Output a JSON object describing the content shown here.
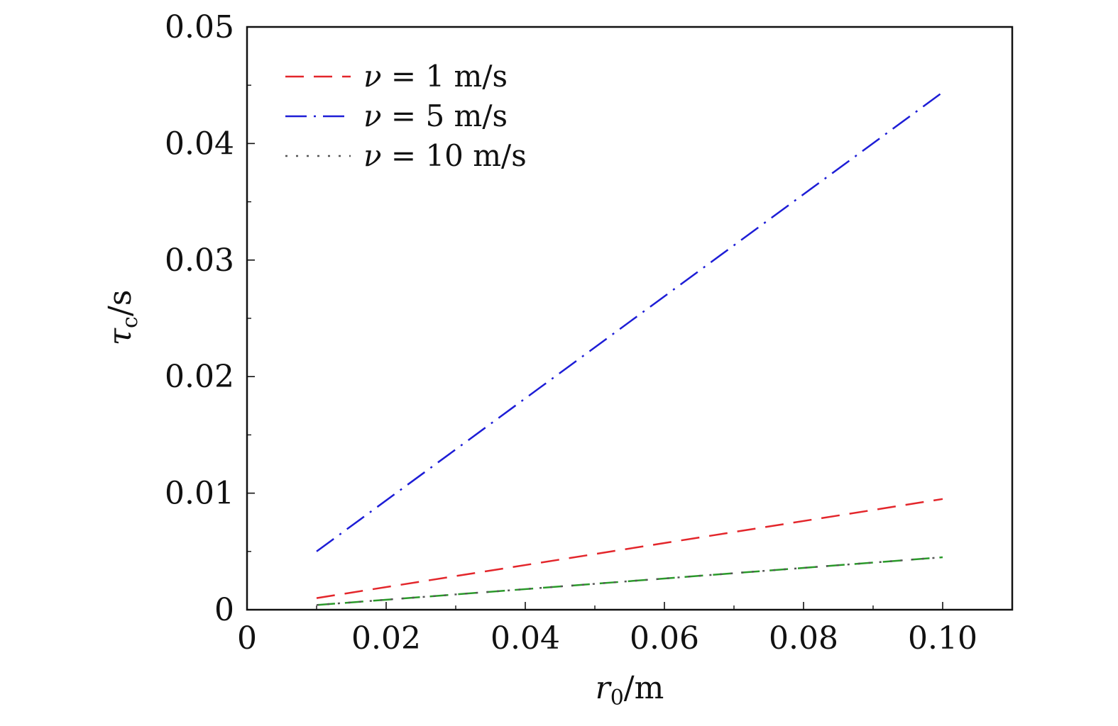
{
  "chart_data": {
    "type": "line",
    "xlabel": "r0/m",
    "xlabel_parts": {
      "symbol": "r",
      "subscript": "0",
      "unit": "/m"
    },
    "ylabel": "τc/s",
    "ylabel_parts": {
      "symbol": "τ",
      "subscript": "c",
      "unit": "/s"
    },
    "xlim": [
      0,
      0.11
    ],
    "ylim": [
      0,
      0.05
    ],
    "x_ticks": [
      0,
      0.02,
      0.04,
      0.06,
      0.08,
      0.1
    ],
    "x_tick_labels": [
      "0",
      "0.02",
      "0.04",
      "0.06",
      "0.08",
      "0.10"
    ],
    "x_minor_ticks": [
      0.01,
      0.03,
      0.05,
      0.07,
      0.09,
      0.11
    ],
    "y_ticks": [
      0,
      0.01,
      0.02,
      0.03,
      0.04,
      0.05
    ],
    "y_tick_labels": [
      "0",
      "0.01",
      "0.02",
      "0.03",
      "0.04",
      "0.05"
    ],
    "y_minor_ticks": [
      0.005,
      0.015,
      0.025,
      0.035,
      0.045
    ],
    "grid": false,
    "legend_position": "top-left",
    "series": [
      {
        "name": "ν = 1 m/s",
        "legend_parts": {
          "symbol": "ν",
          "rest": " = 1 m/s"
        },
        "color": "#e3262b",
        "style": "dashed",
        "x": [
          0.01,
          0.1
        ],
        "y": [
          0.001,
          0.0095
        ]
      },
      {
        "name": "ν = 5 m/s",
        "legend_parts": {
          "symbol": "ν",
          "rest": " = 5 m/s"
        },
        "color": "#1d1dd6",
        "style": "dashdot",
        "x": [
          0.01,
          0.1
        ],
        "y": [
          0.005,
          0.0444
        ]
      },
      {
        "name": "ν = 10 m/s",
        "legend_parts": {
          "symbol": "ν",
          "rest": " = 10 m/s"
        },
        "color": "#555555",
        "style": "dotted",
        "x": [
          0.01,
          0.1
        ],
        "y": [
          0.0004,
          0.0045
        ]
      }
    ],
    "overlay_series": [
      {
        "color": "#2a9a2a",
        "style": "dashed",
        "x": [
          0.01,
          0.1
        ],
        "y": [
          0.0004,
          0.0045
        ]
      }
    ]
  }
}
